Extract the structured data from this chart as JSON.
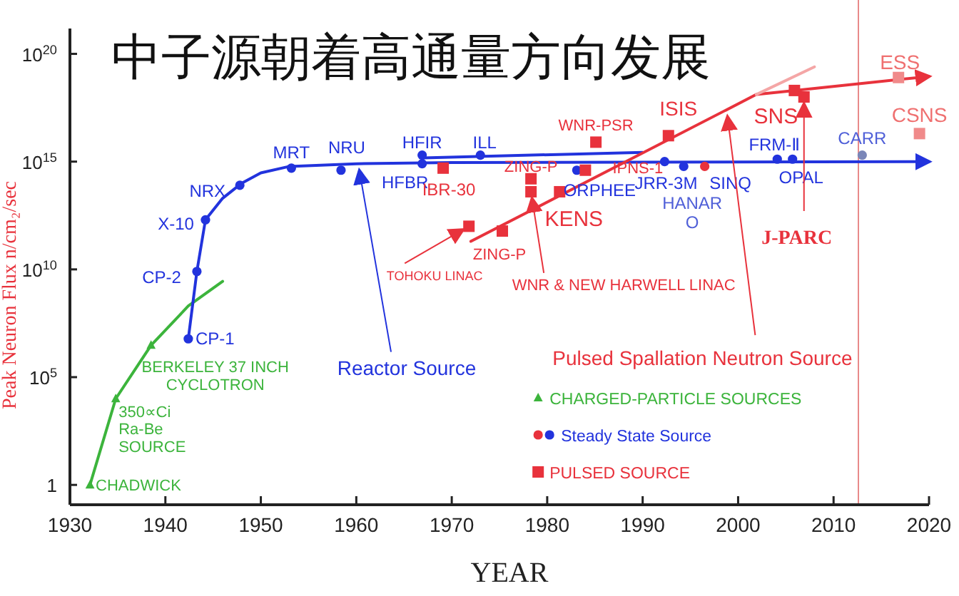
{
  "chart_data": {
    "type": "scatter",
    "title": "中子源朝着高通量方向发展",
    "xlabel": "YEAR",
    "ylabel": "Peak Neuron Flux n/cm₂/sec",
    "log": "y",
    "xlim": [
      1930,
      2020
    ],
    "ylim": [
      0.12,
      1.5e+21
    ],
    "xticks": [
      1930,
      1940,
      1950,
      1960,
      1970,
      1980,
      1990,
      2000,
      2010,
      2020
    ],
    "yticks": [
      {
        "value": 1,
        "label": "1"
      },
      {
        "value": 100000,
        "label": "10$^{5}$"
      },
      {
        "value": 10000000000.0,
        "label": "10$^{10}$"
      },
      {
        "value": 1000000000000000.0,
        "label": "10$^{15}$"
      },
      {
        "value": 1e+20,
        "label": "10$^{20}$"
      }
    ],
    "legend": "bottom",
    "ref_lines": [
      {
        "axis": "x",
        "value": 2012.6,
        "color": "#e88a8a"
      }
    ],
    "series": [
      {
        "type": "line",
        "color": "#3cb43c",
        "marker": "none",
        "x": [
          1932.1,
          1934.8,
          1938.5,
          1942.4,
          1946
        ],
        "values": [
          1,
          10000,
          3000000.0,
          200000000.0,
          2800000000.0
        ]
      },
      {
        "name": "CHARGED-PARTICLE SOURCES",
        "color": "#3cb43c",
        "marker": "triangle",
        "x": [
          1932.1,
          1934.8,
          1938.5
        ],
        "values": [
          1,
          10000,
          3000000.0
        ]
      },
      {
        "type": "line",
        "color": "#2233dd",
        "marker": "none",
        "x": [
          1942.4,
          1943.3,
          1944.2,
          1946,
          1948,
          1950,
          1953,
          1960,
          1970,
          2020
        ],
        "values": [
          6000000.0,
          8000000000.0,
          2000000000000.0,
          20000000000000.0,
          100000000000000.0,
          300000000000000.0,
          600000000000000.0,
          800000000000000.0,
          900000000000000.0,
          1000000000000000.0
        ]
      },
      {
        "type": "line",
        "color": "#2233dd",
        "marker": "none",
        "x": [
          1967,
          1990
        ],
        "values": [
          1500000000000000.0,
          2700000000000000.0
        ]
      },
      {
        "type": "line",
        "color": "#e8323c",
        "marker": "none",
        "x": [
          1972,
          2001.9,
          2005.9,
          2020
        ],
        "values": [
          200000000000.0,
          1.3e+18,
          2e+18,
          9e+18
        ]
      },
      {
        "type": "line",
        "color": "#f4a6a6",
        "marker": "none",
        "x": [
          2001.9,
          2008
        ],
        "values": [
          1.3e+18,
          2.5e+19
        ]
      },
      {
        "name": "Steady State Source",
        "color": "#2233dd",
        "marker": "circle",
        "x": [
          1942.4,
          1943.3,
          1944.2,
          1947.8,
          1953.2,
          1958.4,
          1966.9,
          1966.9,
          1973,
          1983.1,
          1992.3,
          1994.3,
          1996.5,
          2004.1,
          2005.7,
          2013
        ],
        "values": [
          6000000.0,
          8000000000.0,
          2000000000000.0,
          80000000000000.0,
          500000000000000.0,
          400000000000000.0,
          2000000000000000.0,
          800000000000000.0,
          2000000000000000.0,
          400000000000000.0,
          1000000000000000.0,
          600000000000000.0,
          600000000000000.0,
          1300000000000000.0,
          1300000000000000.0,
          2000000000000000.0
        ],
        "colors": [
          "#2233dd",
          "#2233dd",
          "#2233dd",
          "#2233dd",
          "#2233dd",
          "#2233dd",
          "#2233dd",
          "#2233dd",
          "#2233dd",
          "#2233dd",
          "#2233dd",
          "#2233dd",
          "#e8323c",
          "#2233dd",
          "#2233dd",
          "#7a86b8"
        ]
      },
      {
        "name": "PULSED SOURCE",
        "color": "#e8323c",
        "marker": "square",
        "x": [
          1969.1,
          1971.8,
          1975.3,
          1978.3,
          1978.3,
          1981.3,
          1984,
          1985.1,
          1992.7,
          2005.9,
          2006.9,
          2016.8,
          2019
        ],
        "values": [
          500000000000000.0,
          1000000000000.0,
          600000000000.0,
          160000000000000.0,
          40000000000000.0,
          40000000000000.0,
          400000000000000.0,
          8000000000000000.0,
          1.6e+16,
          2e+18,
          1e+18,
          8e+18,
          2e+16
        ],
        "colors": [
          "#e8323c",
          "#e8323c",
          "#e8323c",
          "#e8323c",
          "#e8323c",
          "#e8323c",
          "#e8323c",
          "#e8323c",
          "#e8323c",
          "#e8323c",
          "#e8323c",
          "#f08a8a",
          "#f08a8a"
        ]
      }
    ],
    "annotations": [
      {
        "text": "CHADWICK",
        "x": 1932.1,
        "y": 1
      },
      {
        "text": "350∝Ci\nRa-Be\nSOURCE",
        "x": 1934.8,
        "y": 10000
      },
      {
        "text": "BERKELEY 37 INCH\nCYCLOTRON",
        "x": 1938.5,
        "y": 3000000.0
      },
      {
        "text": "CP-1",
        "x": 1942.4,
        "y": 6000000.0
      },
      {
        "text": "CP-2",
        "x": 1943.3,
        "y": 8000000000.0
      },
      {
        "text": "X-10",
        "x": 1944.2,
        "y": 2000000000000.0
      },
      {
        "text": "NRX",
        "x": 1947.8,
        "y": 80000000000000.0
      },
      {
        "text": "MRT",
        "x": 1953.2,
        "y": 500000000000000.0
      },
      {
        "text": "NRU",
        "x": 1958.4,
        "y": 400000000000000.0
      },
      {
        "text": "HFIR",
        "x": 1966.9,
        "y": 2000000000000000.0
      },
      {
        "text": "HFBR",
        "x": 1966.9,
        "y": 800000000000000.0
      },
      {
        "text": "ILL",
        "x": 1973,
        "y": 2000000000000000.0
      },
      {
        "text": "ORPHEE",
        "x": 1983.1,
        "y": 400000000000000.0
      },
      {
        "text": "JRR-3M",
        "x": 1992.3,
        "y": 1000000000000000.0
      },
      {
        "text": "HANAR\nO",
        "x": 1994.3,
        "y": 600000000000000.0
      },
      {
        "text": "SINQ",
        "x": 1996.5,
        "y": 600000000000000.0
      },
      {
        "text": "FRM-Ⅱ",
        "x": 2004.1,
        "y": 1300000000000000.0
      },
      {
        "text": "OPAL",
        "x": 2005.7,
        "y": 1300000000000000.0
      },
      {
        "text": "CARR",
        "x": 2013,
        "y": 2000000000000000.0
      },
      {
        "text": "IBR-30",
        "x": 1969.1,
        "y": 500000000000000.0
      },
      {
        "text": "TOHOKU LINAC",
        "x": 1971.8,
        "y": 1000000000000.0
      },
      {
        "text": "ZING-P",
        "x": 1978.3,
        "y": 160000000000000.0
      },
      {
        "text": "ZING-P",
        "x": 1975.3,
        "y": 600000000000.0
      },
      {
        "text": "KENS",
        "x": 1981.3,
        "y": 40000000000000.0
      },
      {
        "text": "IPNS-1",
        "x": 1984,
        "y": 400000000000000.0
      },
      {
        "text": "WNR-PSR",
        "x": 1985.1,
        "y": 8000000000000000.0
      },
      {
        "text": "ISIS",
        "x": 1992.7,
        "y": 1.6e+16
      },
      {
        "text": "SNS",
        "x": 2005.9,
        "y": 2e+18
      },
      {
        "text": "J-PARC",
        "x": 2006.9,
        "y": 1e+18
      },
      {
        "text": "ESS",
        "x": 2016.8,
        "y": 8e+18
      },
      {
        "text": "CSNS",
        "x": 2019,
        "y": 2e+16
      },
      {
        "text": "WNR & NEW HARWELL LINAC",
        "x": 1978.3,
        "y": 40000000000000.0
      },
      {
        "text": "Reactor Source",
        "x": 1960.2,
        "y": 800000000000000.0
      },
      {
        "text": "Pulsed Spallation Neutron Source",
        "x": 1998.8,
        "y": 2.5e+17
      }
    ]
  }
}
